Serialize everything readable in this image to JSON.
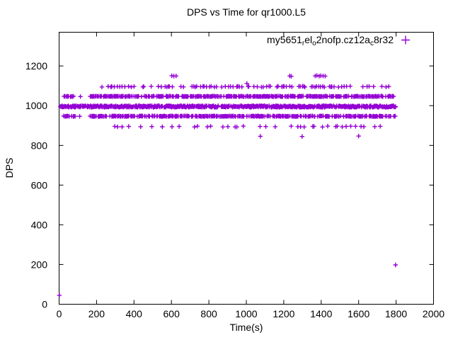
{
  "title": "DPS vs Time for qr1000.L5",
  "legend": {
    "series_name_plain": "my5651_rel_o2nofp.cz12a_c8r32",
    "label_segments": [
      {
        "text": "my5651",
        "subscript": false
      },
      {
        "text": "r",
        "subscript": true
      },
      {
        "text": "el",
        "subscript": false
      },
      {
        "text": "o",
        "subscript": true
      },
      {
        "text": "2nofp.cz12a",
        "subscript": false
      },
      {
        "text": "c",
        "subscript": true
      },
      {
        "text": "8r32",
        "subscript": false
      }
    ],
    "marker": "plus"
  },
  "colors": {
    "marker": "#9400d3",
    "axis": "#000000",
    "background": "#ffffff",
    "text": "#000000"
  },
  "chart_data": {
    "type": "scatter",
    "title": "DPS vs Time for qr1000.L5",
    "xlabel": "Time(s)",
    "ylabel": "DPS",
    "xlim": [
      0,
      2000
    ],
    "ylim": [
      0,
      1370
    ],
    "x_ticks": [
      0,
      200,
      400,
      600,
      800,
      1000,
      1200,
      1400,
      1600,
      1800,
      2000
    ],
    "y_ticks": [
      0,
      200,
      400,
      600,
      800,
      1000,
      1200
    ],
    "grid": false,
    "legend_position": "top-right-inside",
    "marker": "plus",
    "jitter_seed": 1337,
    "time_range_observed_s": [
      0,
      1800
    ],
    "dps_levels_observed": [
      1150,
      1100,
      1050,
      1000,
      950,
      895,
      845
    ],
    "series": [
      {
        "name": "my5651_rel_o2nofp.cz12a_c8r32",
        "color": "#9400d3",
        "clusters": [
          {
            "value": 996,
            "spread": 4,
            "segments": [
              {
                "from": 2,
                "to": 1798,
                "step": 2.2,
                "drop": 0.22
              }
            ]
          },
          {
            "value": 1047,
            "spread": 1.5,
            "segments": [
              {
                "from": 22,
                "to": 84,
                "step": 5,
                "drop": 0.25
              },
              {
                "from": 113,
                "to": 113,
                "step": 5,
                "drop": 0
              },
              {
                "from": 166,
                "to": 1798,
                "step": 3.4,
                "drop": 0.32
              }
            ]
          },
          {
            "value": 947,
            "spread": 1.5,
            "segments": [
              {
                "from": 24,
                "to": 86,
                "step": 5,
                "drop": 0.25
              },
              {
                "from": 112,
                "to": 112,
                "step": 5,
                "drop": 0
              },
              {
                "from": 165,
                "to": 1795,
                "step": 3.4,
                "drop": 0.32
              }
            ]
          },
          {
            "value": 1096,
            "spread": 2.2,
            "segments": [
              {
                "from": 232,
                "to": 330,
                "step": 13,
                "drop": 0.25
              },
              {
                "from": 336,
                "to": 1558,
                "step": 8.5,
                "drop": 0.45
              },
              {
                "from": 1570,
                "to": 1782,
                "step": 24,
                "drop": 0.25
              }
            ]
          },
          {
            "value": 895,
            "spread": 2.4,
            "segments": [
              {
                "from": 285,
                "to": 665,
                "step": 32,
                "drop": 0.18
              },
              {
                "from": 692,
                "to": 1332,
                "step": 30,
                "drop": 0.2
              },
              {
                "from": 1348,
                "to": 1726,
                "step": 24,
                "drop": 0.22
              }
            ]
          }
        ],
        "points": [
          [
            602,
            1151
          ],
          [
            613,
            1149
          ],
          [
            625,
            1150
          ],
          [
            1232,
            1150
          ],
          [
            1240,
            1148
          ],
          [
            1368,
            1150
          ],
          [
            1377,
            1152
          ],
          [
            1389,
            1149
          ],
          [
            1398,
            1151
          ],
          [
            1410,
            1150
          ],
          [
            1421,
            1149
          ],
          [
            1003,
            1112
          ],
          [
            1075,
            846
          ],
          [
            1298,
            845
          ],
          [
            1600,
            847
          ],
          [
            1,
            45
          ],
          [
            1797,
            198
          ]
        ]
      }
    ]
  }
}
